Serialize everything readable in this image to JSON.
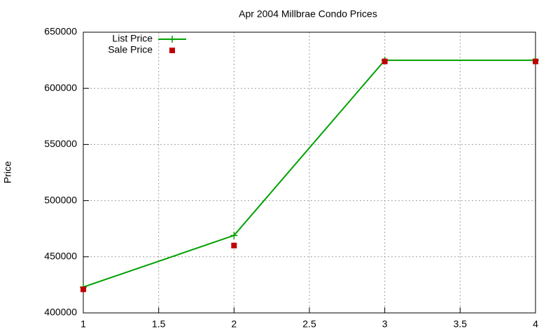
{
  "chart_data": {
    "type": "line",
    "title": "Apr 2004 Millbrae Condo Prices",
    "y_label": "Price",
    "x": [
      1,
      2,
      3,
      4
    ],
    "series": [
      {
        "name": "List Price",
        "color": "#00a000",
        "style": "linespoints",
        "values": [
          423000,
          469000,
          625000,
          625000
        ]
      },
      {
        "name": "Sale Price",
        "color": "#c00000",
        "style": "points",
        "values": [
          421000,
          460000,
          624000,
          624000
        ]
      }
    ],
    "xlim": [
      1,
      4
    ],
    "xticks": [
      1,
      1.5,
      2,
      2.5,
      3,
      3.5,
      4
    ],
    "ylim": [
      400000,
      650000
    ],
    "yticks": [
      400000,
      450000,
      500000,
      550000,
      600000,
      650000
    ],
    "grid": true,
    "legend": "top-left"
  }
}
